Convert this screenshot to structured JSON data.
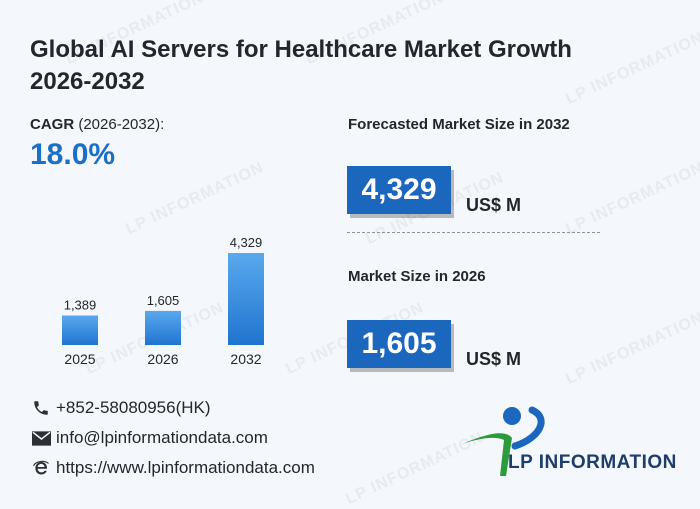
{
  "title": "Global AI Servers for Healthcare Market Growth 2026-2032",
  "cagr": {
    "label_bold": "CAGR",
    "label_rest": " (2026-2032):",
    "value": "18.0%"
  },
  "forecast": {
    "label": "Forecasted Market Size in 2032",
    "value": "4,329",
    "unit": "US$ M"
  },
  "current": {
    "label": "Market Size in 2026",
    "value": "1,605",
    "unit": "US$ M"
  },
  "contacts": {
    "phone": "+852-58080956(HK)",
    "email": "info@lpinformationdata.com",
    "web": "https://www.lpinformationdata.com"
  },
  "logo": {
    "text": "LP INFORMATION"
  },
  "watermark": "LP INFORMATION",
  "colors": {
    "accent": "#1a6fc9",
    "box": "#1a67bd",
    "bar_top": "#5aa9ee",
    "bar_bottom": "#1f74cf",
    "logo_green": "#2e9a3e"
  },
  "chart_data": {
    "type": "bar",
    "categories": [
      "2025",
      "2026",
      "2032"
    ],
    "values": [
      1389,
      1605,
      4329
    ],
    "labels": [
      "1,389",
      "1,605",
      "4,329"
    ],
    "title": "",
    "xlabel": "",
    "ylabel": "",
    "ylim": [
      0,
      4329
    ]
  }
}
